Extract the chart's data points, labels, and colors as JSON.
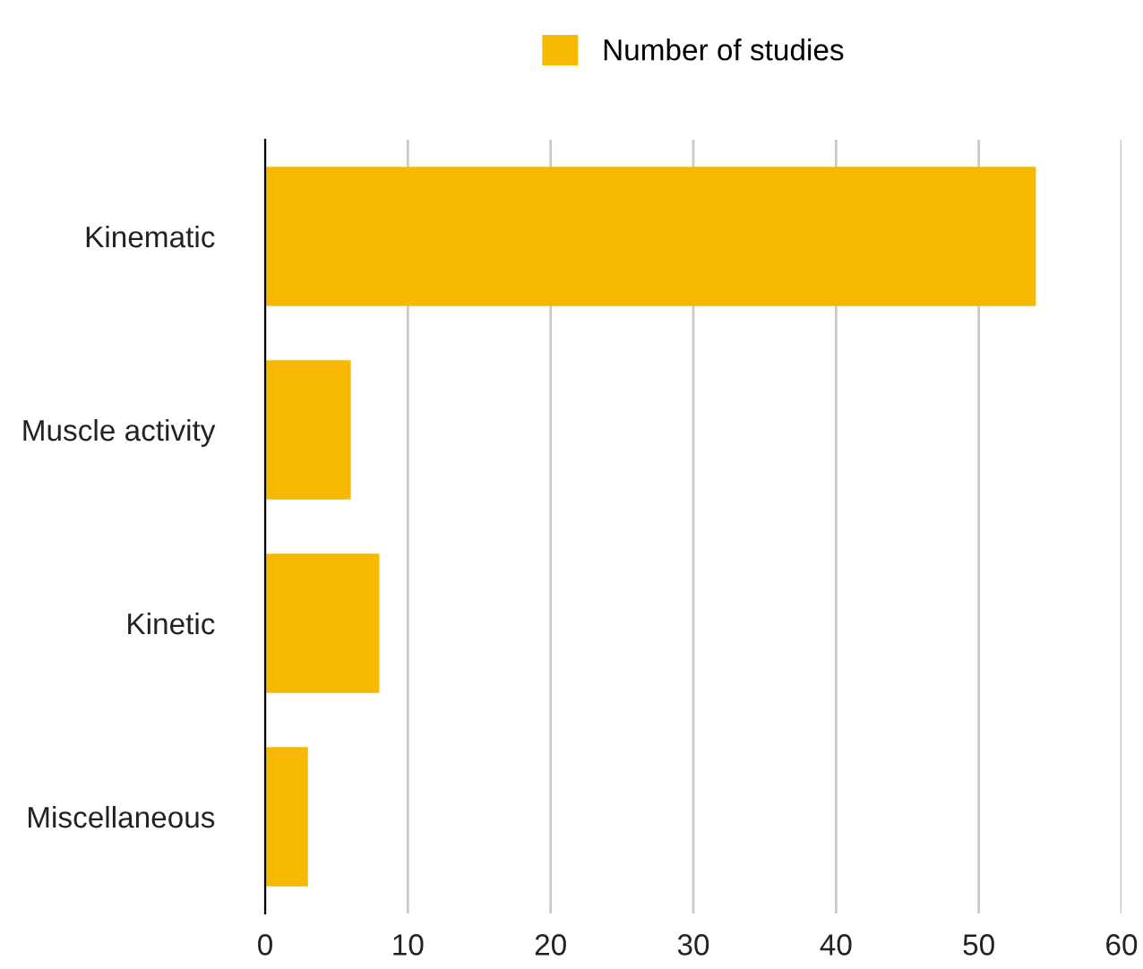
{
  "chart_data": {
    "type": "bar",
    "orientation": "horizontal",
    "categories": [
      "Kinematic",
      "Muscle activity",
      "Kinetic",
      "Miscellaneous"
    ],
    "series": [
      {
        "name": "Number of studies",
        "color": "#f6b800",
        "values": [
          54,
          6,
          8,
          3
        ]
      }
    ],
    "xlim": [
      0,
      60
    ],
    "xticks": [
      0,
      10,
      20,
      30,
      40,
      50,
      60
    ],
    "grid": "x",
    "legend": "top"
  }
}
